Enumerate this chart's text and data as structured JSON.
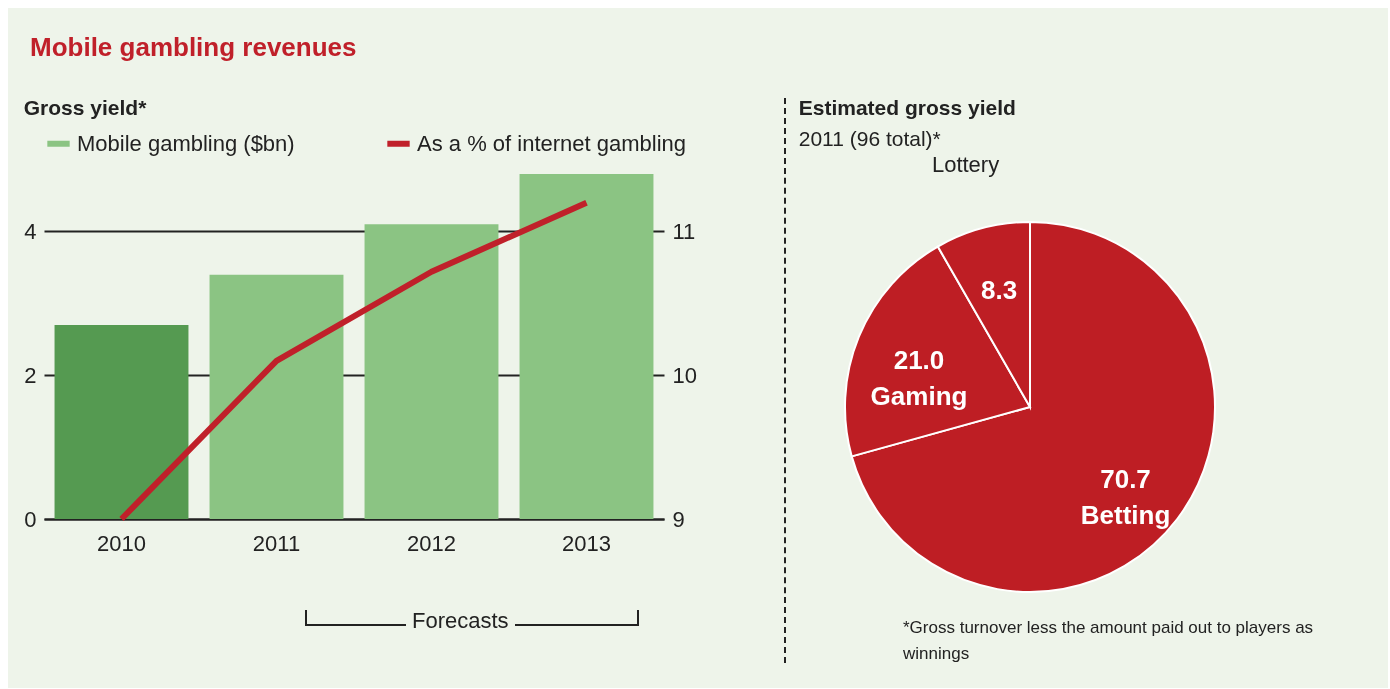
{
  "chart_data": [
    {
      "type": "bar",
      "title": "Mobile gambling revenues",
      "subtitle": "Gross yield*",
      "categories": [
        "2010",
        "2011",
        "2012",
        "2013"
      ],
      "series": [
        {
          "name": "Mobile gambling ($bn)",
          "type": "bar",
          "color": "#8bc483",
          "colors": [
            "#559a51",
            "#8bc483",
            "#8bc483",
            "#8bc483"
          ],
          "values": [
            2.7,
            3.4,
            4.1,
            4.8
          ]
        },
        {
          "name": "As a % of internet gambling",
          "type": "line",
          "axis": "y2",
          "color": "#c0202a",
          "values": [
            9.0,
            10.1,
            10.72,
            11.2
          ]
        }
      ],
      "ylim": [
        0,
        4.8
      ],
      "yticks": [
        0,
        2,
        4
      ],
      "y2lim": [
        9,
        11.4
      ],
      "y2ticks": [
        9,
        10,
        11
      ],
      "grid": "y",
      "legend": "top",
      "annotations": [
        "Forecasts"
      ]
    },
    {
      "type": "pie",
      "title": "Estimated gross yield",
      "subtitle": "2011 (96 total)*",
      "categories": [
        "Betting",
        "Gaming",
        "Lottery"
      ],
      "values": [
        70.7,
        21.0,
        8.3
      ],
      "colors": [
        "#be1e24",
        "#be1e24",
        "#be1e24"
      ],
      "value_labels": [
        "70.7",
        "21.0",
        "8.3"
      ],
      "annotations": [
        "*Gross turnover less the amount paid out to players as winnings"
      ]
    }
  ]
}
